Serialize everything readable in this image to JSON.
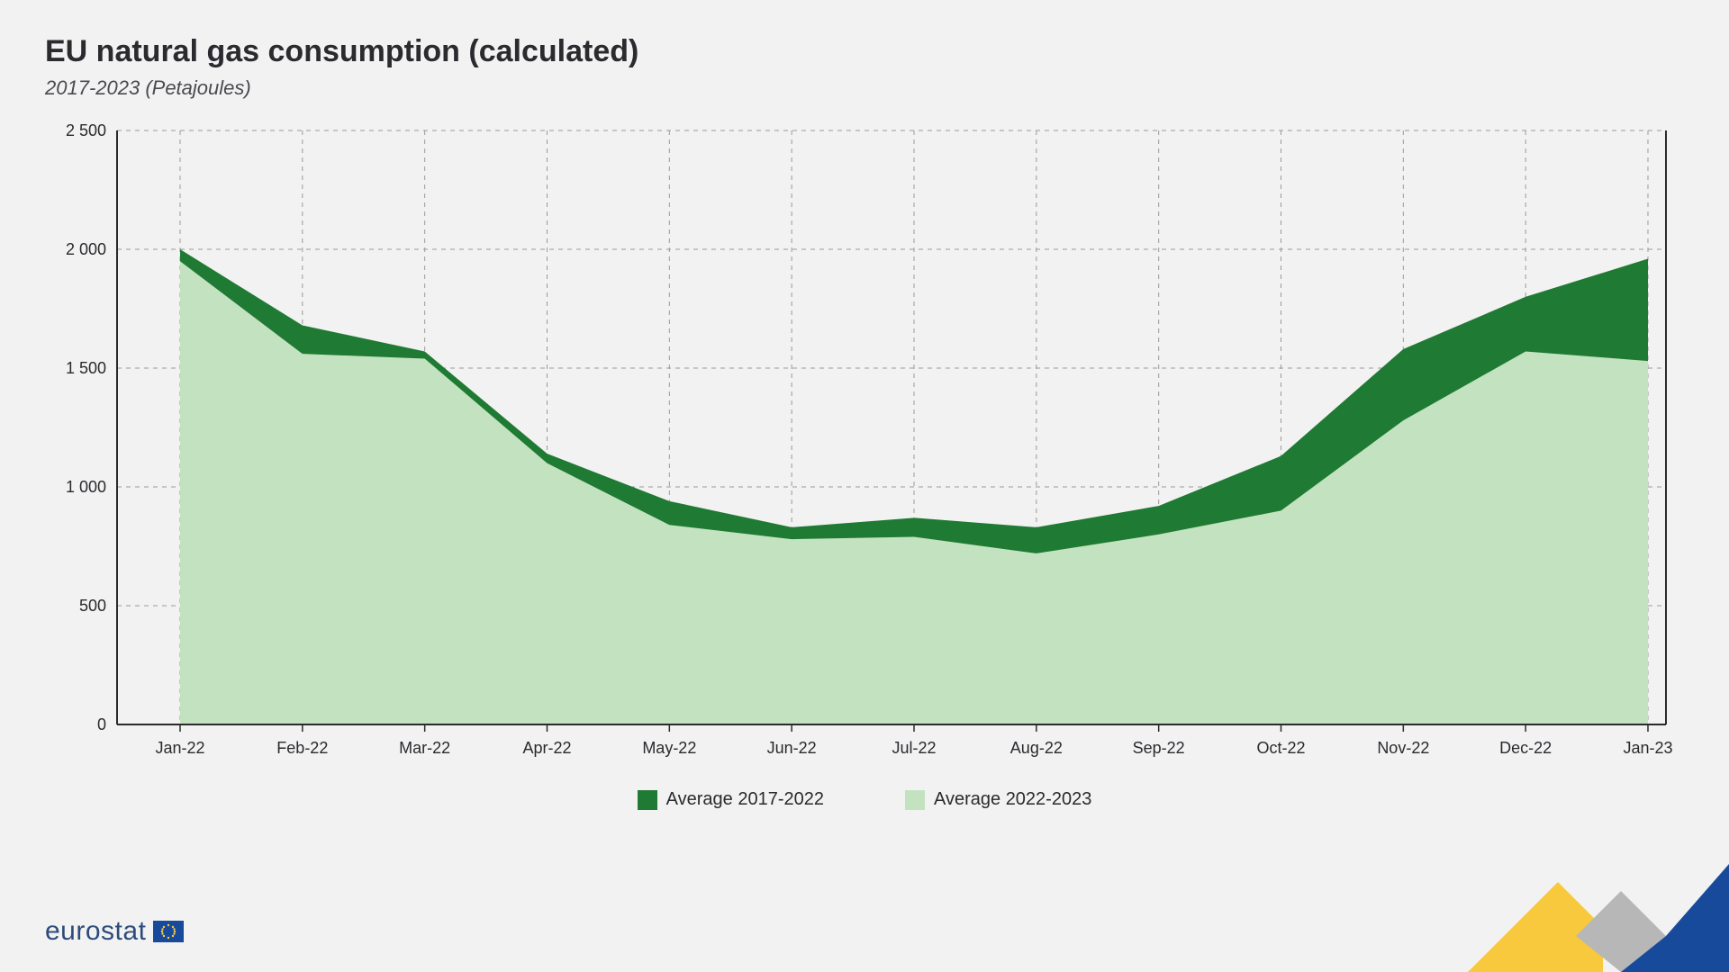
{
  "title": "EU natural gas consumption (calculated)",
  "subtitle": "2017-2023 (Petajoules)",
  "brand": "eurostat",
  "chart": {
    "type": "area",
    "background_color": "#f2f2f2",
    "plot_border_color": "#2a2a2f",
    "grid_color": "#9a9a9a",
    "grid_dash": "5,5",
    "tick_font_size": 18,
    "tick_color": "#2a2a2f",
    "ylim": [
      0,
      2500
    ],
    "ytick_step": 500,
    "y_ticks": [
      "0",
      "500",
      "1 000",
      "1 500",
      "2 000",
      "2 500"
    ],
    "categories": [
      "Jan-22",
      "Feb-22",
      "Mar-22",
      "Apr-22",
      "May-22",
      "Jun-22",
      "Jul-22",
      "Aug-22",
      "Sep-22",
      "Oct-22",
      "Nov-22",
      "Dec-22",
      "Jan-23"
    ],
    "series": [
      {
        "name": "Average 2017-2022",
        "color": "#1f7a33",
        "values": [
          2000,
          1680,
          1570,
          1140,
          940,
          830,
          870,
          830,
          920,
          1130,
          1580,
          1800,
          1960
        ]
      },
      {
        "name": "Average 2022-2023",
        "color": "#c3e3c0",
        "values": [
          1950,
          1560,
          1540,
          1100,
          840,
          780,
          790,
          720,
          800,
          900,
          1280,
          1570,
          1530
        ]
      }
    ],
    "legend": [
      {
        "color": "#1f7a33",
        "label": "Average 2017-2022"
      },
      {
        "color": "#c3e3c0",
        "label": "Average 2022-2023"
      }
    ]
  },
  "corner_logo": {
    "colors": {
      "yellow": "#f8c93c",
      "gray": "#b7b7b7",
      "blue": "#184a9c"
    }
  }
}
